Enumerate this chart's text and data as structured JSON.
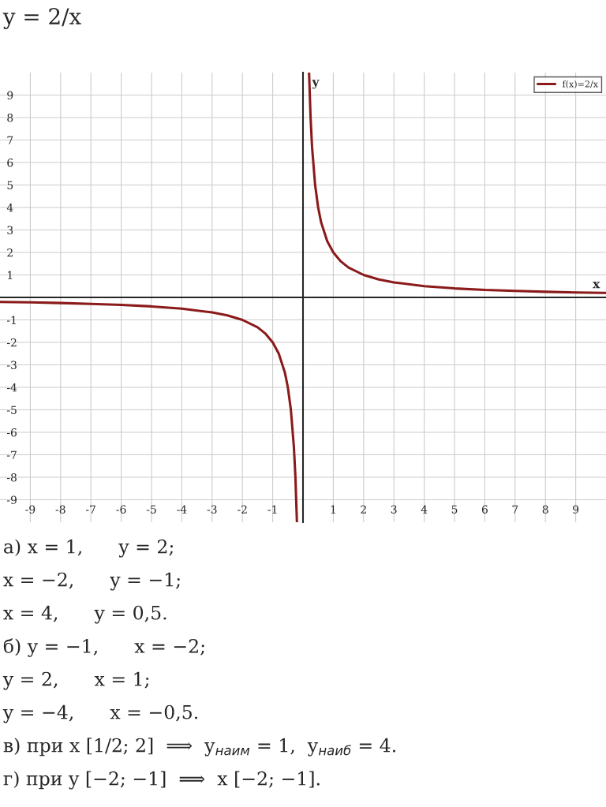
{
  "chart_data": {
    "type": "line",
    "title": "y = 2/x",
    "xlabel": "x",
    "ylabel": "y",
    "series": [
      {
        "name": null,
        "color": "#8b1a1a",
        "x": [
          -10,
          -9,
          -8,
          -7,
          -6,
          -5,
          -4,
          -3,
          -2.5,
          -2,
          -1.5,
          -1.25,
          -1,
          -0.8,
          -0.6,
          -0.5,
          -0.4,
          -0.3,
          -0.25,
          -0.2
        ],
        "values": [
          -0.2,
          -0.22,
          -0.25,
          -0.29,
          -0.33,
          -0.4,
          -0.5,
          -0.67,
          -0.8,
          -1,
          -1.33,
          -1.6,
          -2,
          -2.5,
          -3.33,
          -4,
          -5,
          -6.67,
          -8,
          -10
        ]
      },
      {
        "name": "f(x)=2/x",
        "color": "#8b1a1a",
        "x": [
          0.2,
          0.25,
          0.3,
          0.4,
          0.5,
          0.6,
          0.8,
          1,
          1.25,
          1.5,
          2,
          2.5,
          3,
          4,
          5,
          6,
          7,
          8,
          9,
          10
        ],
        "values": [
          10,
          8,
          6.67,
          5,
          4,
          3.33,
          2.5,
          2,
          1.6,
          1.33,
          1,
          0.8,
          0.67,
          0.5,
          0.4,
          0.33,
          0.29,
          0.25,
          0.22,
          0.2
        ]
      }
    ],
    "xlim": [
      -10,
      10
    ],
    "ylim": [
      -10,
      10
    ],
    "xticks": [
      -9,
      -8,
      -7,
      -6,
      -5,
      -4,
      -3,
      -2,
      -1,
      1,
      2,
      3,
      4,
      5,
      6,
      7,
      8,
      9
    ],
    "yticks": [
      -9,
      -8,
      -7,
      -6,
      -5,
      -4,
      -3,
      -2,
      -1,
      1,
      2,
      3,
      4,
      5,
      6,
      7,
      8,
      9
    ],
    "grid": true,
    "legend": "top right",
    "line_style": "solid",
    "marker": "none",
    "annotations": [
      "а) x = 1,      y = 2;",
      "x = −2,      y = −1;",
      "x = 4,      y = 0,5.",
      "б) y = −1,      x = −2;",
      "y = 2,      x = 1;",
      "y = −4,      x = −0,5.",
      "в) при x [1/2; 2]  ⟹  y$_{наим}$ = 1,  y$_{наиб}$ = 4.",
      "г) при y [−2; −1]  ⟹  x [−2; −1]."
    ]
  }
}
